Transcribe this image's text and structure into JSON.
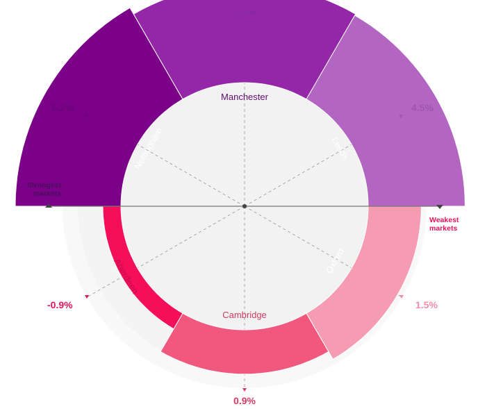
{
  "chart_data": {
    "type": "radial-bar",
    "title": "",
    "axis": {
      "left_label": [
        "Strongest",
        "markets"
      ],
      "right_label": [
        "Weakest",
        "markets"
      ]
    },
    "segments": [
      {
        "name": "Nottingham",
        "value": 5.1,
        "value_label": "5.1%",
        "color": "#7B0189",
        "label_color": "#FFFFFF",
        "value_color": "#6A0577"
      },
      {
        "name": "Manchester",
        "value": 4.6,
        "value_label": "4.6%",
        "color": "#9426A8",
        "label_color": "#5E0E6E",
        "value_color": "#8A2A9E"
      },
      {
        "name": "Leeds",
        "value": 4.5,
        "value_label": "4.5%",
        "color": "#B266C1",
        "label_color": "#FFFFFF",
        "value_color": "#A054B2"
      },
      {
        "name": "Oxford",
        "value": 1.5,
        "value_label": "1.5%",
        "color": "#F59BB2",
        "label_color": "#FFFFFF",
        "value_color": "#F08DA8"
      },
      {
        "name": "Cambridge",
        "value": 0.9,
        "value_label": "0.9%",
        "color": "#F0587E",
        "label_color": "#D03A62",
        "value_color": "#D33A65"
      },
      {
        "name": "Aberdeen",
        "value": -0.9,
        "value_label": "-0.9%",
        "color": "#F50F5B",
        "label_color": "#C70A4B",
        "value_color": "#E0145A"
      }
    ],
    "colors": {
      "strongest_label": "#4A0E5C",
      "weakest_label": "#E0145A",
      "axis_line": "#777777",
      "inner_disc": "#F2F2F2",
      "outer_ring": "#F8F8F8"
    }
  }
}
